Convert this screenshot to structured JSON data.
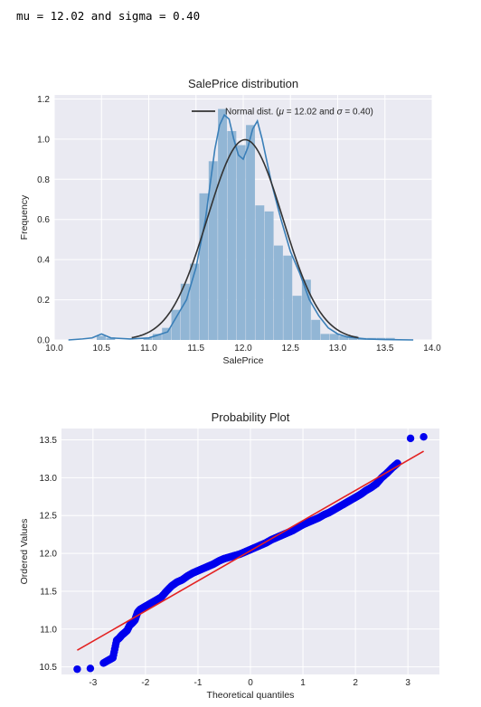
{
  "console": {
    "output": "mu = 12.02 and sigma = 0.40"
  },
  "chart_data": [
    {
      "type": "histogram",
      "title": "SalePrice distribution",
      "xlabel": "SalePrice",
      "ylabel": "Frequency",
      "xlim": [
        10.0,
        14.0
      ],
      "ylim": [
        0,
        1.22
      ],
      "xticks": [
        "10.0",
        "10.5",
        "11.0",
        "11.5",
        "12.0",
        "12.5",
        "13.0",
        "13.5",
        "14.0"
      ],
      "yticks": [
        "0.0",
        "0.2",
        "0.4",
        "0.6",
        "0.8",
        "1.0",
        "1.2"
      ],
      "grid": true,
      "legend": {
        "position": "top-right",
        "entries": [
          "Normal dist. ($\\mu=$ 12.02 and $\\sigma=$ 0.40)"
        ]
      },
      "colors": {
        "bars": "#92b6d5",
        "kde": "#3a7fb8",
        "normal": "#333333",
        "background": "#eaeaf2"
      },
      "bins": {
        "start": 10.45,
        "width": 0.0987,
        "values": [
          0.02,
          0.01,
          0.0,
          0.0,
          0.0,
          0.01,
          0.03,
          0.06,
          0.15,
          0.28,
          0.38,
          0.73,
          0.89,
          1.15,
          1.04,
          0.97,
          1.07,
          0.67,
          0.64,
          0.47,
          0.42,
          0.22,
          0.3,
          0.1,
          0.03,
          0.03,
          0.02,
          0.02,
          0.01,
          0.01,
          0.01,
          0.01
        ]
      },
      "kde": {
        "x": [
          10.15,
          10.3,
          10.4,
          10.5,
          10.6,
          10.8,
          11.0,
          11.2,
          11.4,
          11.5,
          11.6,
          11.7,
          11.75,
          11.8,
          11.85,
          11.9,
          11.95,
          12.0,
          12.05,
          12.1,
          12.15,
          12.2,
          12.3,
          12.4,
          12.5,
          12.6,
          12.7,
          12.8,
          12.9,
          13.0,
          13.1,
          13.3,
          13.5,
          13.8
        ],
        "y": [
          0.0,
          0.005,
          0.01,
          0.03,
          0.01,
          0.005,
          0.01,
          0.04,
          0.2,
          0.36,
          0.6,
          0.95,
          1.07,
          1.12,
          1.1,
          1.0,
          0.92,
          0.9,
          0.96,
          1.05,
          1.09,
          1.0,
          0.78,
          0.6,
          0.44,
          0.33,
          0.2,
          0.12,
          0.06,
          0.03,
          0.015,
          0.005,
          0.002,
          0.0
        ]
      },
      "normal": {
        "mu": 12.02,
        "sigma": 0.4
      }
    },
    {
      "type": "scatter",
      "title": "Probability Plot",
      "xlabel": "Theoretical quantiles",
      "ylabel": "Ordered Values",
      "xlim": [
        -3.6,
        3.6
      ],
      "ylim": [
        10.4,
        13.65
      ],
      "xticks": [
        "-3",
        "-2",
        "-1",
        "0",
        "1",
        "2",
        "3"
      ],
      "yticks": [
        "10.5",
        "11.0",
        "11.5",
        "12.0",
        "12.5",
        "13.0",
        "13.5"
      ],
      "grid": true,
      "colors": {
        "points": "#0000ee",
        "fit": "#e32222",
        "background": "#eaeaf2"
      },
      "fit_line": {
        "x": [
          -3.3,
          3.3
        ],
        "y": [
          10.72,
          13.35
        ]
      },
      "points": {
        "x": [
          -3.3,
          -3.05,
          -2.8,
          -2.7,
          -2.62,
          -2.55,
          -2.5,
          -2.45,
          -2.4,
          -2.35,
          -2.3,
          -2.25,
          -2.2,
          -2.15,
          -2.1,
          -2.0,
          -1.9,
          -1.8,
          -1.7,
          -1.6,
          -1.5,
          -1.4,
          -1.3,
          -1.2,
          -1.1,
          -1.0,
          -0.9,
          -0.8,
          -0.7,
          -0.6,
          -0.5,
          -0.4,
          -0.3,
          -0.2,
          -0.1,
          0.0,
          0.1,
          0.2,
          0.3,
          0.4,
          0.5,
          0.6,
          0.7,
          0.8,
          0.9,
          1.0,
          1.1,
          1.2,
          1.3,
          1.4,
          1.5,
          1.6,
          1.7,
          1.8,
          1.9,
          2.0,
          2.1,
          2.2,
          2.3,
          2.4,
          2.5,
          2.6,
          2.7,
          2.8,
          3.05,
          3.3
        ],
        "y": [
          10.47,
          10.48,
          10.55,
          10.59,
          10.62,
          10.85,
          10.88,
          10.92,
          10.95,
          10.98,
          11.05,
          11.08,
          11.12,
          11.22,
          11.26,
          11.3,
          11.34,
          11.38,
          11.42,
          11.5,
          11.57,
          11.62,
          11.65,
          11.7,
          11.74,
          11.77,
          11.8,
          11.83,
          11.86,
          11.9,
          11.93,
          11.95,
          11.97,
          11.99,
          12.02,
          12.05,
          12.08,
          12.11,
          12.14,
          12.18,
          12.21,
          12.24,
          12.27,
          12.3,
          12.34,
          12.38,
          12.41,
          12.44,
          12.47,
          12.51,
          12.54,
          12.58,
          12.62,
          12.66,
          12.7,
          12.74,
          12.78,
          12.83,
          12.87,
          12.92,
          13.0,
          13.06,
          13.13,
          13.19,
          13.52,
          13.54
        ]
      }
    }
  ]
}
